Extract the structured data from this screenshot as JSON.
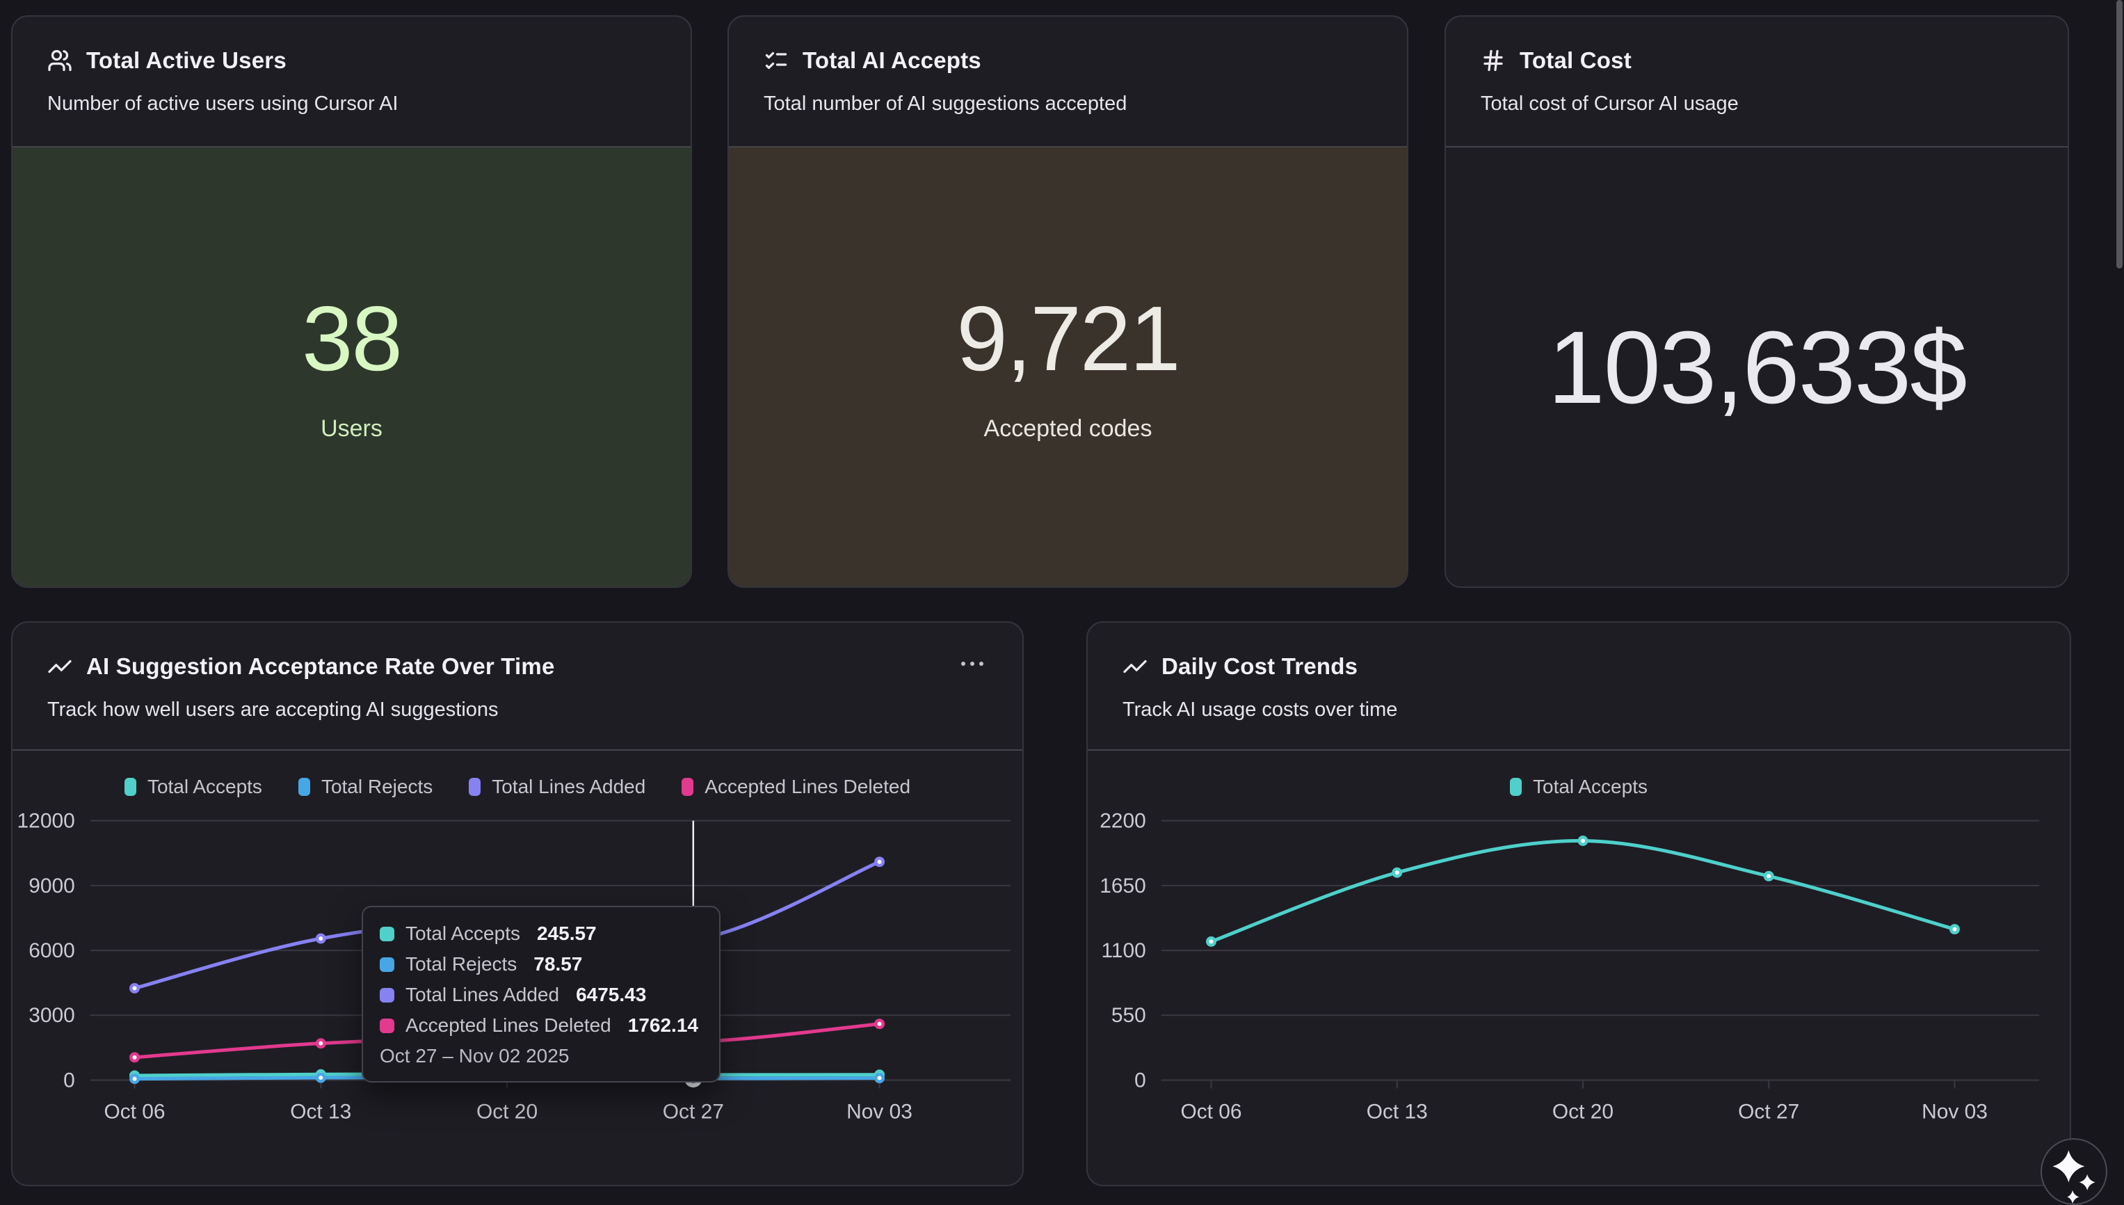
{
  "stat_cards": [
    {
      "id": "total-active-users",
      "icon": "users-icon",
      "title": "Total Active Users",
      "subtitle": "Number of active users using Cursor AI",
      "value": "38",
      "value_label": "Users",
      "body_bg": "#2d372c",
      "value_color": "#d8f7c3",
      "label_color": "#cfeebc"
    },
    {
      "id": "total-ai-accepts",
      "icon": "list-checks-icon",
      "title": "Total AI Accepts",
      "subtitle": "Total number of AI suggestions accepted",
      "value": "9,721",
      "value_label": "Accepted codes",
      "body_bg": "#3a332b",
      "value_color": "#edebe6",
      "label_color": "#e9e7e2"
    },
    {
      "id": "total-cost",
      "icon": "hash-icon",
      "title": "Total Cost",
      "subtitle": "Total cost of Cursor AI usage",
      "value": "103,633$",
      "value_label": "",
      "body_bg": "#1e1d24",
      "value_color": "#eae9ee",
      "label_color": ""
    }
  ],
  "chart_cards": [
    {
      "id": "acceptance-rate",
      "icon": "line-chart-icon",
      "title": "AI Suggestion Acceptance Rate Over Time",
      "subtitle": "Track how well users are accepting AI suggestions",
      "has_menu": true
    },
    {
      "id": "daily-cost",
      "icon": "line-chart-icon",
      "title": "Daily Cost Trends",
      "subtitle": "Track AI usage costs over time",
      "has_menu": false
    }
  ],
  "chart_data": [
    {
      "id": "acceptance-rate",
      "type": "line",
      "title": "AI Suggestion Acceptance Rate Over Time",
      "x": [
        "Oct 06",
        "Oct 13",
        "Oct 20",
        "Oct 27",
        "Nov 03"
      ],
      "yticks": [
        0,
        3000,
        6000,
        9000,
        12000
      ],
      "ylim": [
        0,
        12000
      ],
      "grid": true,
      "legend_position": "top",
      "series": [
        {
          "name": "Total Accepts",
          "color": "#4fd0ca",
          "values": [
            210,
            265,
            285,
            245.57,
            250
          ]
        },
        {
          "name": "Total Rejects",
          "color": "#47a7e6",
          "values": [
            60,
            110,
            125,
            78.57,
            95
          ]
        },
        {
          "name": "Total Lines Added",
          "color": "#8782f2",
          "values": [
            4250,
            6550,
            7400,
            6475.43,
            10100
          ]
        },
        {
          "name": "Accepted Lines Deleted",
          "color": "#e23a8e",
          "values": [
            1050,
            1700,
            1950,
            1762.14,
            2600
          ]
        }
      ],
      "highlight_x": "Oct 27",
      "highlight_index": 3,
      "tooltip": {
        "rows": [
          {
            "label": "Total Accepts",
            "value": "245.57",
            "color": "#4fd0ca"
          },
          {
            "label": "Total Rejects",
            "value": "78.57",
            "color": "#47a7e6"
          },
          {
            "label": "Total Lines Added",
            "value": "6475.43",
            "color": "#8782f2"
          },
          {
            "label": "Accepted Lines Deleted",
            "value": "1762.14",
            "color": "#e23a8e"
          }
        ],
        "period": "Oct 27 – Nov 02 2025"
      }
    },
    {
      "id": "daily-cost",
      "type": "line",
      "title": "Daily Cost Trends",
      "x": [
        "Oct 06",
        "Oct 13",
        "Oct 20",
        "Oct 27",
        "Nov 03"
      ],
      "yticks": [
        0,
        550,
        1100,
        1650,
        2200
      ],
      "ylim": [
        0,
        2200
      ],
      "grid": true,
      "legend_position": "top",
      "series": [
        {
          "name": "Total Accepts",
          "color": "#4fd0ca",
          "values": [
            1175,
            1760,
            2030,
            1730,
            1280
          ]
        }
      ]
    }
  ],
  "colors": {
    "page_bg": "#17161d",
    "card_bg": "#1e1d24",
    "grid_line": "#3a3941",
    "axis_text": "#cbcad2",
    "crosshair": "#efeef4",
    "teal": "#4fd0ca",
    "blue": "#47a7e6",
    "purple": "#8782f2",
    "pink": "#e23a8e"
  }
}
